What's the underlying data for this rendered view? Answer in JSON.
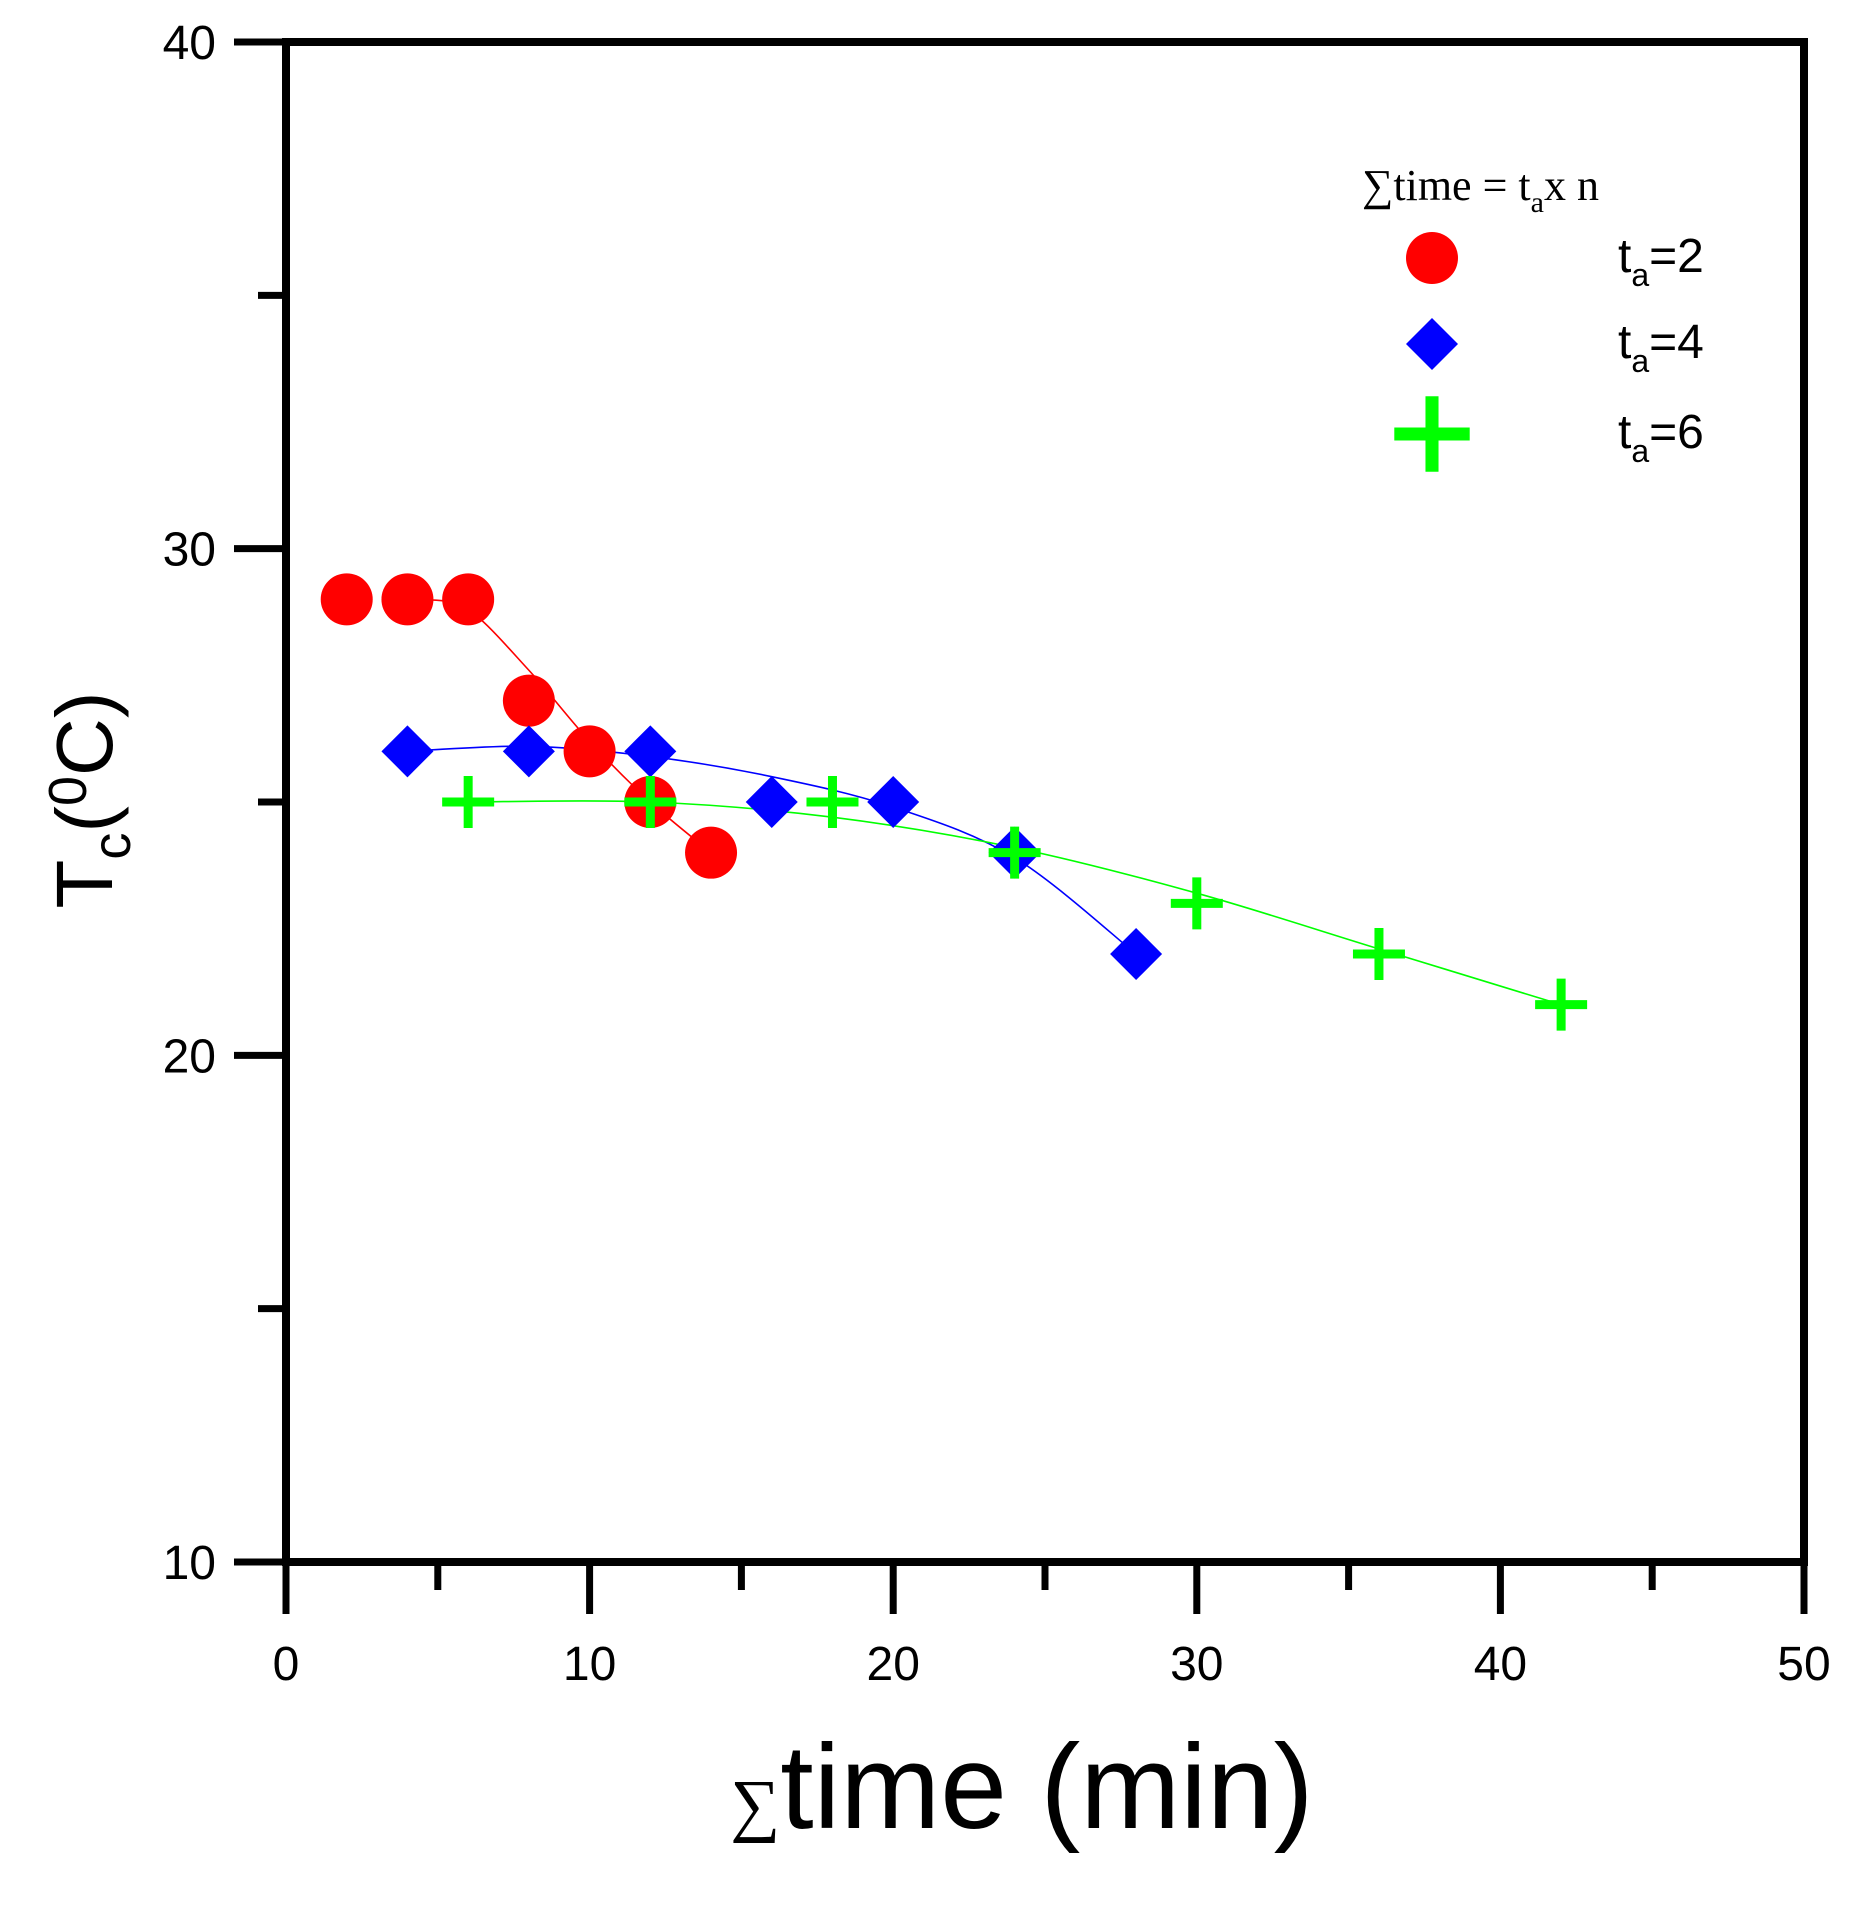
{
  "chart_data": {
    "type": "scatter",
    "title": "",
    "xlabel": {
      "symbol": "∑",
      "text": "time (min)"
    },
    "ylabel": {
      "main": "T",
      "sub": "c",
      "open": "(",
      "sup": "0",
      "unit": "C)"
    },
    "xlim": [
      0,
      50
    ],
    "ylim": [
      10,
      40
    ],
    "x_ticks": [
      0,
      10,
      20,
      30,
      40,
      50
    ],
    "x_tick_labels": [
      "0",
      "10",
      "20",
      "30",
      "40",
      "50"
    ],
    "x_minor_ticks": [
      5,
      15,
      25,
      35,
      45
    ],
    "y_ticks": [
      10,
      20,
      30,
      40
    ],
    "y_tick_labels": [
      "10",
      "20",
      "30",
      "40"
    ],
    "y_minor_ticks": [
      15,
      25,
      35
    ],
    "grid": false,
    "legend": {
      "position": "top-right",
      "title": {
        "symbol": "∑",
        "text_before": "time = t",
        "sub": "a",
        "text_after": "x n"
      }
    },
    "series": [
      {
        "name": "t_a=2",
        "label_main": "t",
        "label_sub": "a",
        "label_rest": "=2",
        "marker": "circle",
        "color": "#ff0000",
        "x": [
          2,
          4,
          6,
          8,
          10,
          12,
          14
        ],
        "y": [
          29,
          29,
          29,
          27,
          26,
          25,
          24
        ],
        "fit": [
          [
            4.5,
            29
          ],
          [
            6,
            28.8
          ],
          [
            8,
            27.6
          ],
          [
            10,
            26.2
          ],
          [
            12,
            25.0
          ],
          [
            14,
            24.0
          ]
        ]
      },
      {
        "name": "t_a=4",
        "label_main": "t",
        "label_sub": "a",
        "label_rest": "=4",
        "marker": "diamond",
        "color": "#0000ff",
        "x": [
          4,
          8,
          12,
          16,
          20,
          24,
          28
        ],
        "y": [
          26,
          26,
          26,
          25,
          25,
          24,
          22
        ],
        "fit": [
          [
            4,
            26.0
          ],
          [
            8,
            26.1
          ],
          [
            12,
            25.9
          ],
          [
            16,
            25.5
          ],
          [
            20,
            24.9
          ],
          [
            24,
            23.9
          ],
          [
            28,
            22.0
          ]
        ]
      },
      {
        "name": "t_a=6",
        "label_main": "t",
        "label_sub": "a",
        "label_rest": "=6",
        "marker": "plus",
        "color": "#00ff00",
        "x": [
          6,
          12,
          18,
          24,
          30,
          36,
          42
        ],
        "y": [
          25,
          25,
          25,
          24,
          23,
          22,
          21
        ],
        "fit": [
          [
            6,
            25.0
          ],
          [
            12,
            25.0
          ],
          [
            18,
            24.7
          ],
          [
            24,
            24.1
          ],
          [
            30,
            23.2
          ],
          [
            36,
            22.1
          ],
          [
            42,
            21.0
          ]
        ]
      }
    ]
  }
}
